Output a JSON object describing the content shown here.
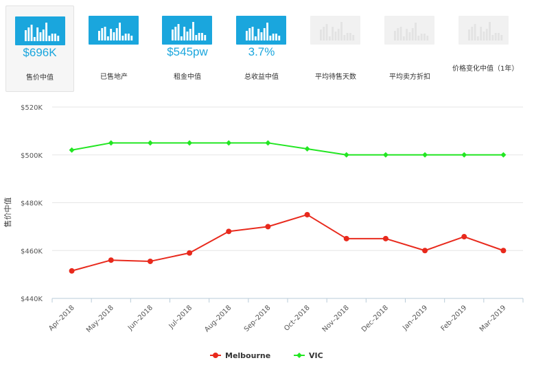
{
  "tabs": [
    {
      "value": "$696K",
      "label": "售价中值",
      "active": true,
      "enabled": true
    },
    {
      "value": "",
      "label": "已售地产",
      "active": false,
      "enabled": true
    },
    {
      "value": "$545pw",
      "label": "租金中值",
      "active": false,
      "enabled": true
    },
    {
      "value": "3.7%",
      "label": "总收益中值",
      "active": false,
      "enabled": true
    },
    {
      "value": "",
      "label": "平均待售天数",
      "active": false,
      "enabled": false
    },
    {
      "value": "",
      "label": "平均卖方折扣",
      "active": false,
      "enabled": false
    },
    {
      "value": "",
      "label": "价格变化中值（1年）",
      "active": false,
      "enabled": false
    }
  ],
  "colors": {
    "accent": "#1aa6dd",
    "melbourne": "#e8291c",
    "vic": "#22e622"
  },
  "chart_data": {
    "type": "line",
    "ylabel": "售价中值",
    "xlabel": "",
    "categories": [
      "Apr–2018",
      "May–2018",
      "Jun–2018",
      "Jul–2018",
      "Aug–2018",
      "Sep–2018",
      "Oct–2018",
      "Nov–2018",
      "Dec–2018",
      "Jan–2019",
      "Feb–2019",
      "Mar–2019"
    ],
    "ylim": [
      440000,
      520000
    ],
    "yticks": [
      440000,
      460000,
      480000,
      500000,
      520000
    ],
    "ytick_labels": [
      "$440K",
      "$460K",
      "$480K",
      "$500K",
      "$520K"
    ],
    "grid": true,
    "legend_position": "bottom",
    "series": [
      {
        "name": "Melbourne",
        "color": "#e8291c",
        "marker": "circle",
        "values": [
          451500,
          456000,
          455500,
          459000,
          468000,
          470000,
          475000,
          465000,
          465000,
          460000,
          465800,
          460000
        ]
      },
      {
        "name": "VIC",
        "color": "#22e622",
        "marker": "diamond",
        "values": [
          502000,
          505000,
          505000,
          505000,
          505000,
          505000,
          502500,
          500000,
          500000,
          500000,
          500000,
          500000
        ]
      }
    ]
  }
}
